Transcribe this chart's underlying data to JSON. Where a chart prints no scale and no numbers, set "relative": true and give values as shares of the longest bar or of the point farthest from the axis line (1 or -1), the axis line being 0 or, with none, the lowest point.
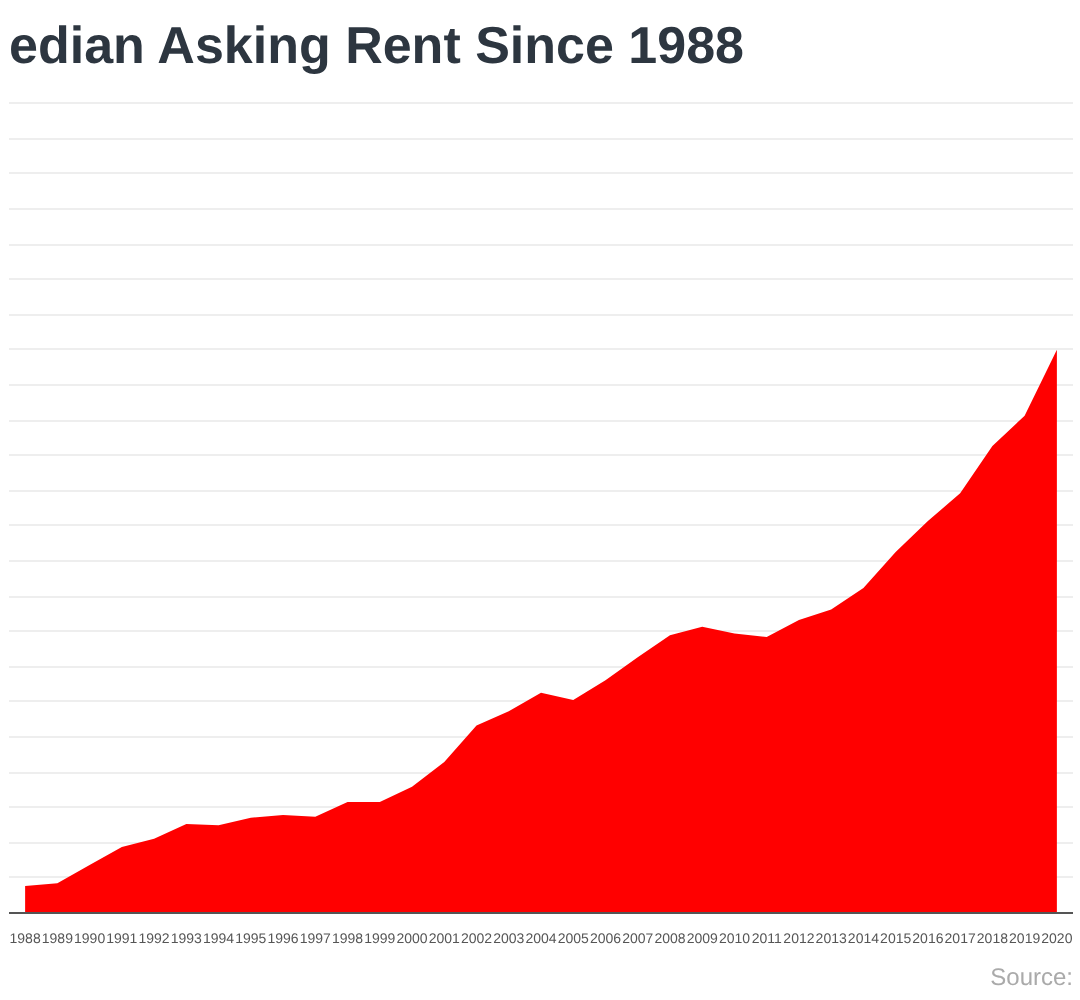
{
  "chart_data": {
    "type": "area",
    "title": "edian Asking Rent Since 1988",
    "relative": true,
    "grid": "y",
    "color": "#ff0000",
    "categories": [
      "1988",
      "1989",
      "1990",
      "1991",
      "1992",
      "1993",
      "1994",
      "1995",
      "1996",
      "1997",
      "1998",
      "1999",
      "2000",
      "2001",
      "2002",
      "2003",
      "2004",
      "2005",
      "2006",
      "2007",
      "2008",
      "2009",
      "2010",
      "2011",
      "2012",
      "2013",
      "2014",
      "2015",
      "2016",
      "2017",
      "2018",
      "2019",
      "2020"
    ],
    "values": [
      0.048,
      0.053,
      0.085,
      0.117,
      0.132,
      0.158,
      0.156,
      0.169,
      0.174,
      0.171,
      0.197,
      0.197,
      0.224,
      0.268,
      0.333,
      0.358,
      0.391,
      0.378,
      0.413,
      0.454,
      0.493,
      0.508,
      0.496,
      0.49,
      0.52,
      0.539,
      0.577,
      0.641,
      0.696,
      0.745,
      0.829,
      0.883,
      1.0
    ],
    "annotations": [
      "Source:"
    ]
  }
}
